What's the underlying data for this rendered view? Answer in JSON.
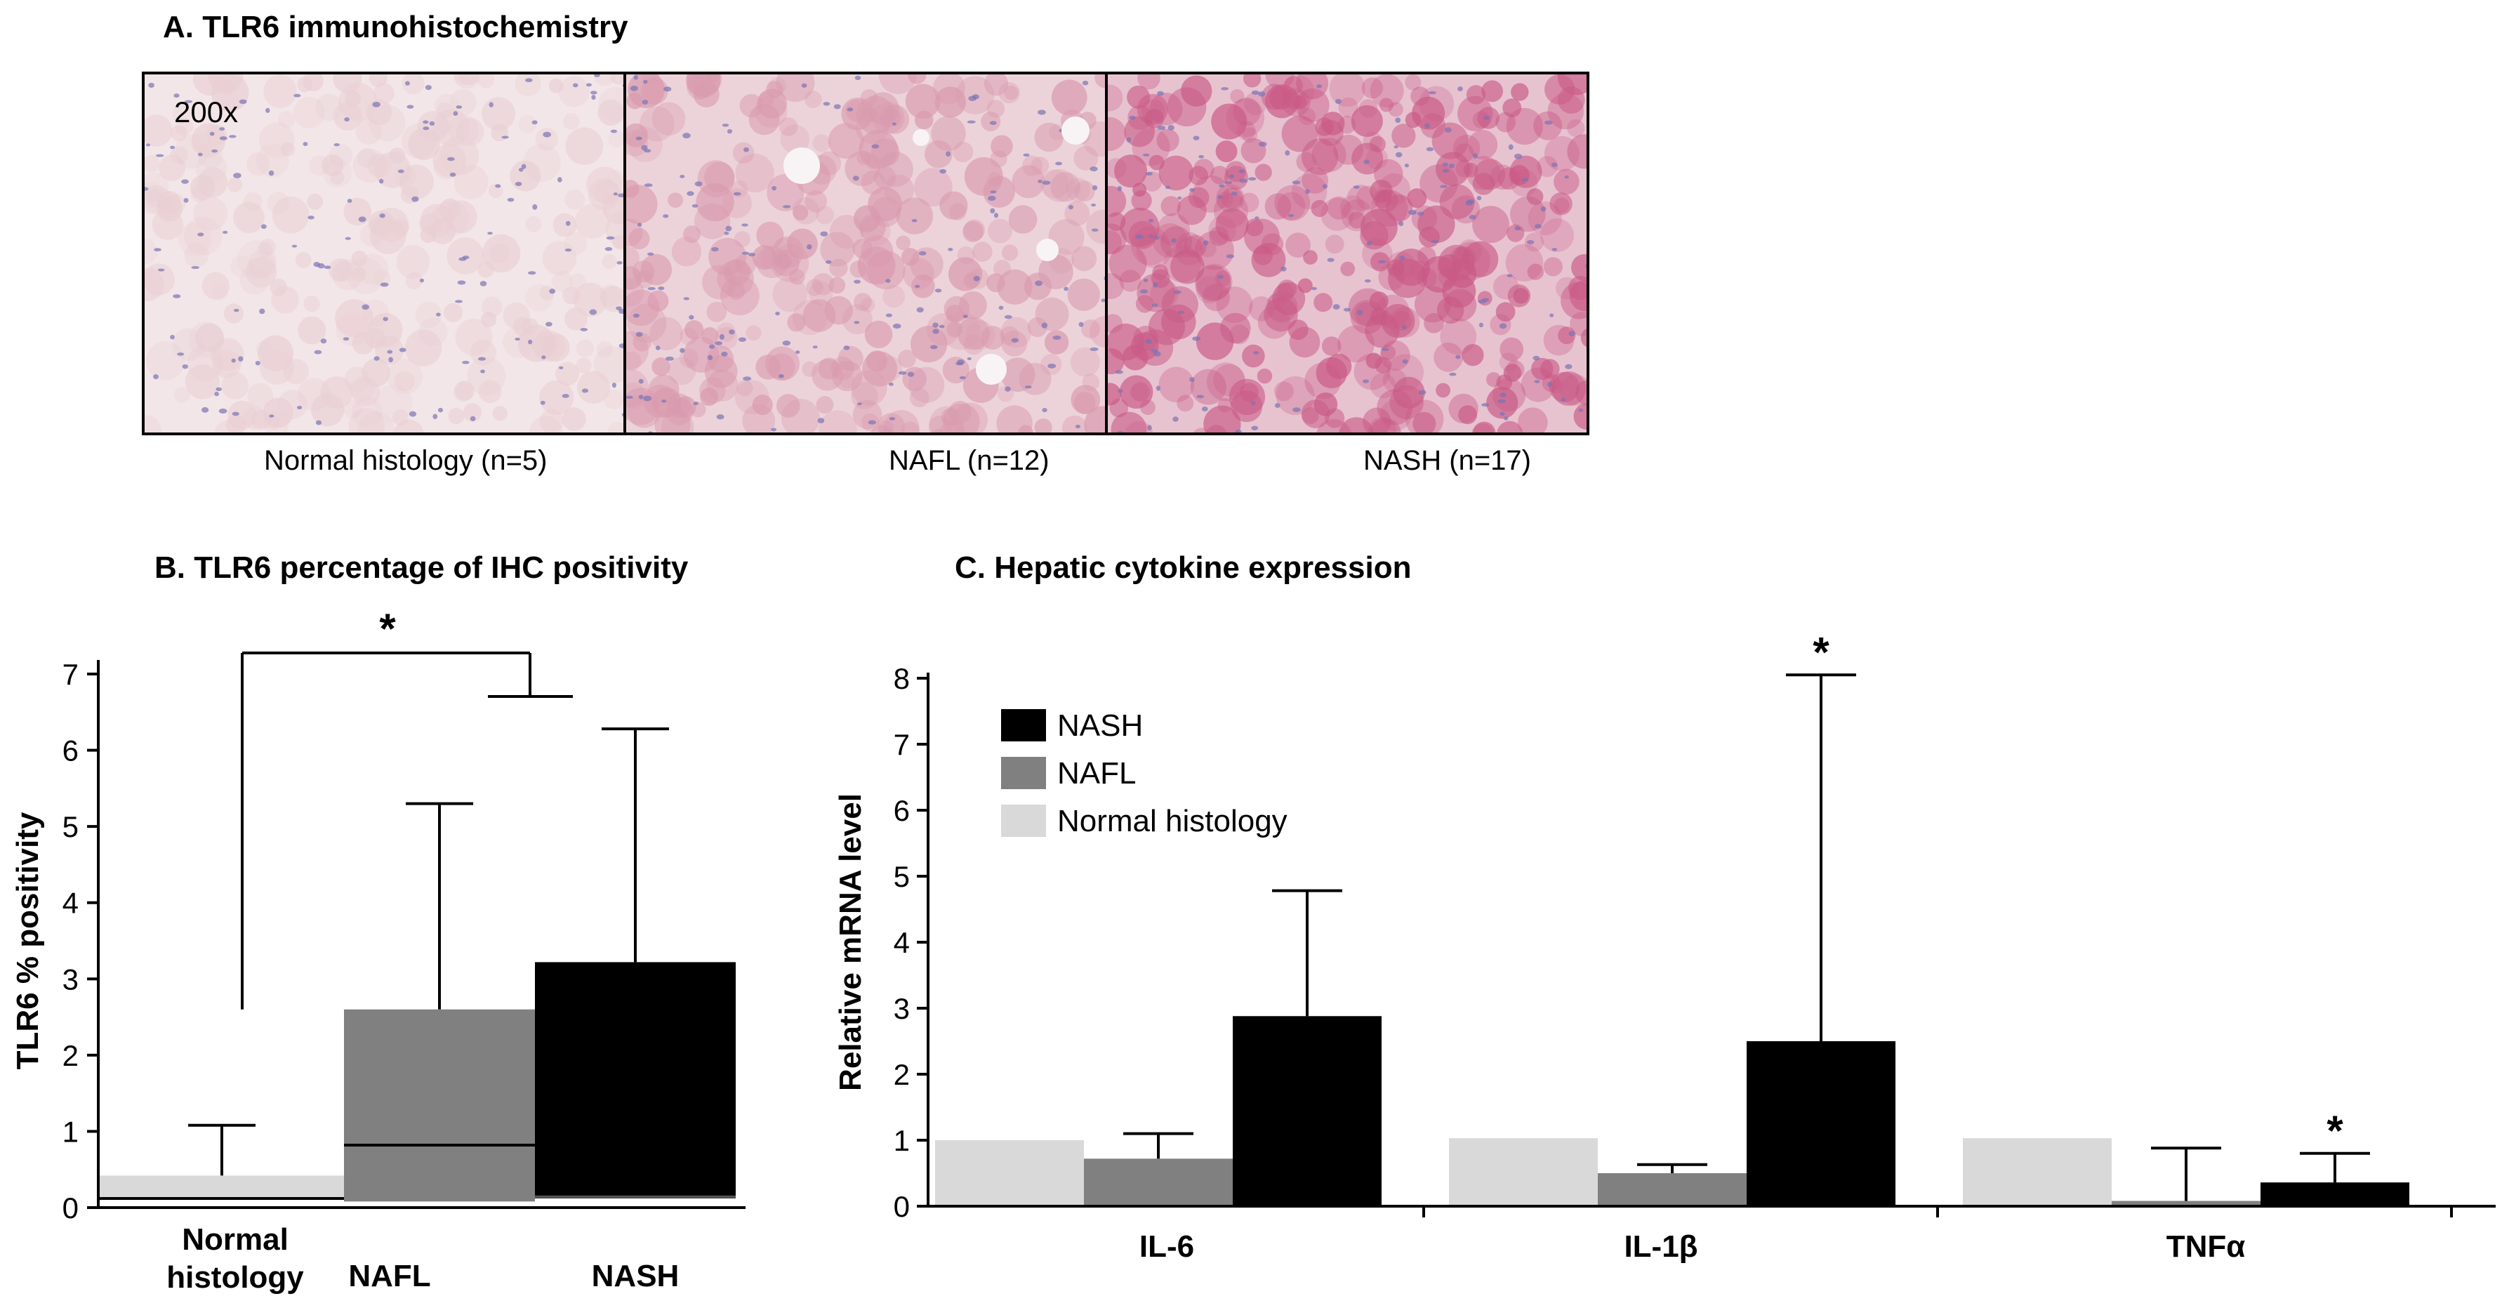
{
  "panel_a": {
    "title": "A. TLR6 immunohistochemistry",
    "magnification": "200x",
    "captions": [
      "Normal histology (n=5)",
      "NAFL (n=12)",
      "NASH (n=17)"
    ]
  },
  "panel_b": {
    "title": "B. TLR6 percentage of IHC  positivity"
  },
  "panel_c": {
    "title": "C. Hepatic cytokine expression"
  },
  "colors": {
    "normal": "#d9d9d9",
    "nafl": "#808080",
    "nash": "#000000",
    "stain_normal": "#e9cfd3",
    "stain_nafl": "#d99aae",
    "stain_nash": "#c95a86",
    "nuclei": "#7a74b3"
  },
  "chart_data": [
    {
      "type": "box",
      "ylabel": "TLR6 % positivity",
      "ylim": [
        0,
        7
      ],
      "yticks": [
        0,
        1,
        2,
        3,
        4,
        5,
        6,
        7
      ],
      "categories": [
        "Normal\nhistology",
        "NAFL",
        "NASH"
      ],
      "boxes": [
        {
          "min": 0.0,
          "q1": 0.1,
          "median": 0.12,
          "q3": 0.42,
          "max": 1.08
        },
        {
          "min": 0.08,
          "q1": 0.08,
          "median": 0.82,
          "q3": 2.6,
          "max": 5.3
        },
        {
          "min": 0.12,
          "q1": 0.12,
          "median": 0.14,
          "q3": 3.22,
          "max": 6.28
        }
      ],
      "significance": {
        "label": "*",
        "from_category": 0,
        "to_category": 1
      }
    },
    {
      "type": "bar",
      "ylabel": "Relative mRNA level",
      "ylim": [
        0,
        8
      ],
      "yticks": [
        0,
        1,
        2,
        3,
        4,
        5,
        6,
        7,
        8
      ],
      "categories": [
        "IL-6",
        "IL-1β",
        "TNFα"
      ],
      "series": [
        {
          "name": "Normal histology",
          "values": [
            1.0,
            1.03,
            1.03
          ],
          "errors": [
            0,
            0,
            0
          ]
        },
        {
          "name": "NAFL",
          "values": [
            0.72,
            0.5,
            0.08
          ],
          "errors": [
            1.1,
            0.63,
            0.88
          ]
        },
        {
          "name": "NASH",
          "values": [
            2.88,
            2.5,
            0.36
          ],
          "errors": [
            4.78,
            8.05,
            0.8
          ]
        }
      ],
      "legend": {
        "order": [
          "NASH",
          "NAFL",
          "Normal histology"
        ],
        "placement": "top-left"
      },
      "significance": [
        {
          "label": "*",
          "category": 1,
          "series": "NASH"
        },
        {
          "label": "*",
          "category": 2,
          "series": "NASH"
        }
      ]
    }
  ]
}
